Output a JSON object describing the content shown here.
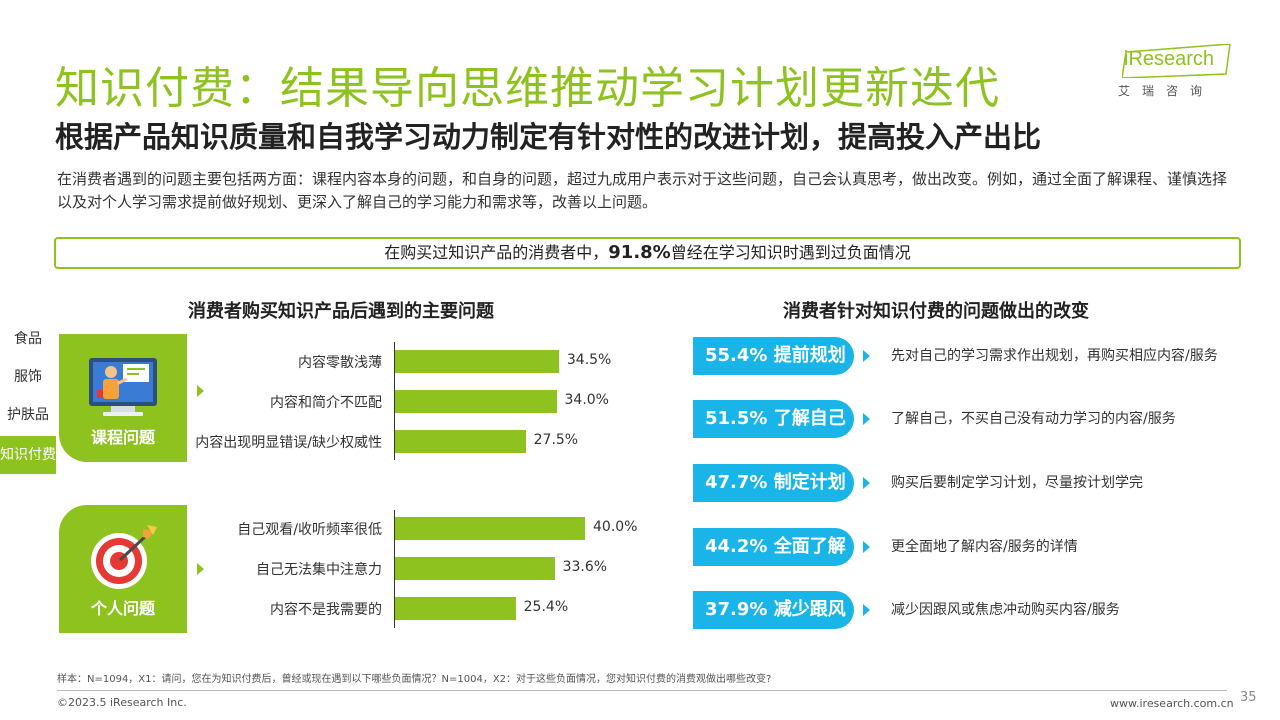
{
  "header": {
    "title": "知识付费：结果导向思维推动学习计划更新迭代",
    "subtitle": "根据产品知识质量和自我学习动力制定有针对性的改进计划，提高投入产出比",
    "intro": "在消费者遇到的问题主要包括两方面：课程内容本身的问题，和自身的问题，超过九成用户表示对于这些问题，自己会认真思考，做出改变。例如，通过全面了解课程、谨慎选择以及对个人学习需求提前做好规划、更深入了解自己的学习能力和需求等，改善以上问题。"
  },
  "logo": {
    "brand": "iResearch",
    "brand_cn": "艾瑞咨询",
    "color": "#8dc21f"
  },
  "highlight": {
    "prefix": "在购买过知识产品的消费者中，",
    "value": "91.8%",
    "suffix": "曾经在学习知识时遇到过负面情况"
  },
  "side_tabs": [
    {
      "label": "食品"
    },
    {
      "label": "服饰"
    },
    {
      "label": "护肤品"
    },
    {
      "label": "知识付费",
      "active": true
    }
  ],
  "left_section": {
    "title": "消费者购买知识产品后遇到的主要问题"
  },
  "right_section": {
    "title": "消费者针对知识付费的问题做出的改变"
  },
  "chart_data": {
    "type": "bar",
    "orientation": "horizontal",
    "title": "消费者购买知识产品后遇到的主要问题",
    "color": "#8dc21f",
    "groups": [
      {
        "name": "课程问题",
        "icon": "monitor-teacher-icon",
        "categories": [
          "内容零散浅薄",
          "内容和简介不匹配",
          "内容出现明显错误/缺少权威性"
        ],
        "values": [
          34.5,
          34.0,
          27.5
        ],
        "labels": [
          "34.5%",
          "34.0%",
          "27.5%"
        ]
      },
      {
        "name": "个人问题",
        "icon": "target-arrow-icon",
        "categories": [
          "自己观看/收听频率很低",
          "自己无法集中注意力",
          "内容不是我需要的"
        ],
        "values": [
          40.0,
          33.6,
          25.4
        ],
        "labels": [
          "40.0%",
          "33.6%",
          "25.4%"
        ]
      }
    ]
  },
  "changes": [
    {
      "pct": "55.4%",
      "label": "提前规划",
      "desc": "先对自己的学习需求作出规划，再购买相应内容/服务"
    },
    {
      "pct": "51.5%",
      "label": "了解自己",
      "desc": "了解自己，不买自己没有动力学习的内容/服务"
    },
    {
      "pct": "47.7%",
      "label": "制定计划",
      "desc": "购买后要制定学习计划，尽量按计划学完"
    },
    {
      "pct": "44.2%",
      "label": "全面了解",
      "desc": "更全面地了解内容/服务的详情"
    },
    {
      "pct": "37.9%",
      "label": "减少跟风",
      "desc": "减少因跟风或焦虑冲动购买内容/服务"
    }
  ],
  "change_color": "#1ab5e8",
  "footer": {
    "note": "样本：N=1094，X1：请问，您在为知识付费后，曾经或现在遇到以下哪些负面情况？N=1004，X2：对于这些负面情况，您对知识付费的消费观做出哪些改变?",
    "copyright": "©2023.5 iResearch Inc.",
    "site": "www.iresearch.com.cn",
    "page": "35"
  }
}
